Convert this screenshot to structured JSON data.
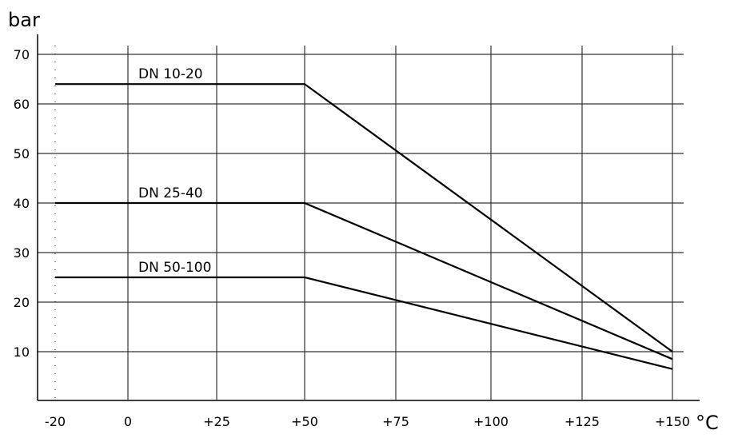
{
  "chart_data": {
    "type": "line",
    "ylabel": "bar",
    "xlabel": "°C",
    "x_ticks": [
      -20,
      0,
      25,
      50,
      75,
      100,
      125,
      150
    ],
    "x_tick_labels": [
      "-20",
      "0",
      "+25",
      "+50",
      "+75",
      "+100",
      "+125",
      "+150"
    ],
    "y_ticks": [
      10,
      20,
      30,
      40,
      50,
      60,
      70
    ],
    "y_tick_labels": [
      "10",
      "20",
      "30",
      "40",
      "50",
      "60",
      "70"
    ],
    "xlim": [
      -20,
      150
    ],
    "ylim": [
      0,
      70
    ],
    "grid": true,
    "series": [
      {
        "name": "DN 10-20",
        "x": [
          -20,
          50,
          150
        ],
        "y": [
          64,
          64,
          10
        ]
      },
      {
        "name": "DN 25-40",
        "x": [
          -20,
          50,
          150
        ],
        "y": [
          40,
          40,
          8.5
        ]
      },
      {
        "name": "DN 50-100",
        "x": [
          -20,
          50,
          150
        ],
        "y": [
          25,
          25,
          6.5
        ]
      }
    ],
    "colors": {
      "line": "#000000",
      "grid": "#333333"
    }
  }
}
